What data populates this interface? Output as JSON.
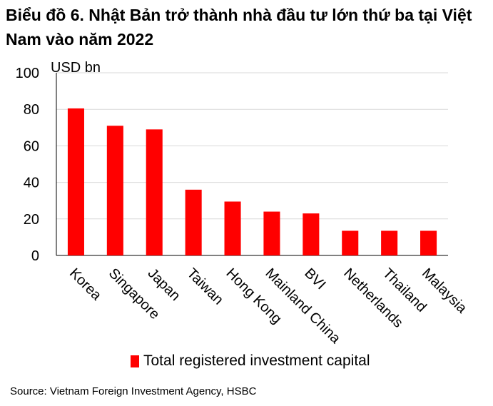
{
  "title": "Biểu đồ 6. Nhật Bản trở thành nhà đầu tư lớn thứ ba tại Việt Nam vào năm 2022",
  "source": "Source: Vietnam Foreign Investment Agency, HSBC",
  "chart_data": {
    "type": "bar",
    "title": "Biểu đồ 6. Nhật Bản trở thành nhà đầu tư lớn thứ ba tại Việt Nam vào năm 2022",
    "ylabel": "USD bn",
    "xlabel": "",
    "ylim": [
      0,
      100
    ],
    "yticks": [
      0,
      20,
      40,
      60,
      80,
      100
    ],
    "grid": true,
    "legend_position": "bottom",
    "bar_color": "#ff0000",
    "categories": [
      "Korea",
      "Singapore",
      "Japan",
      "Taiwan",
      "Hong Kong",
      "Mainland China",
      "BVI",
      "Netherlands",
      "Thailand",
      "Malaysia"
    ],
    "series": [
      {
        "name": "Total registered investment capital",
        "values": [
          80.5,
          71,
          69,
          36,
          29.5,
          24,
          23,
          13.5,
          13.5,
          13.5
        ]
      }
    ]
  }
}
